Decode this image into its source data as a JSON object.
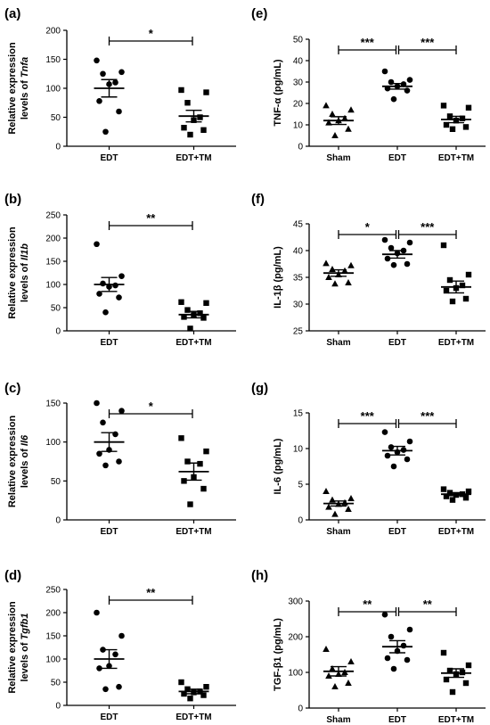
{
  "chart_data": [
    {
      "id": "a",
      "panel_label": "(a)",
      "type": "scatter",
      "ylabel_lines": [
        "Relative expression",
        "levels of "
      ],
      "ylabel_gene": "Tnfa",
      "ylim": [
        0,
        200
      ],
      "yticks": [
        0,
        50,
        100,
        150,
        200
      ],
      "categories": [
        "EDT",
        "EDT+TM"
      ],
      "groups": [
        {
          "mean": 100,
          "sem": 15,
          "marker": "circle",
          "points": [
            148,
            128,
            125,
            110,
            107,
            78,
            60,
            25
          ]
        },
        {
          "mean": 52,
          "sem": 10,
          "marker": "square",
          "points": [
            97,
            93,
            75,
            50,
            45,
            32,
            28,
            20
          ]
        }
      ],
      "comparisons": [
        {
          "from": 0,
          "to": 1,
          "label": "*"
        }
      ]
    },
    {
      "id": "b",
      "panel_label": "(b)",
      "type": "scatter",
      "ylabel_lines": [
        "Relative expression",
        "levels of "
      ],
      "ylabel_gene": "Il1b",
      "ylim": [
        0,
        250
      ],
      "yticks": [
        0,
        50,
        100,
        150,
        200,
        250
      ],
      "categories": [
        "EDT",
        "EDT+TM"
      ],
      "groups": [
        {
          "mean": 100,
          "sem": 15,
          "marker": "circle",
          "points": [
            187,
            118,
            102,
            98,
            95,
            80,
            72,
            40
          ]
        },
        {
          "mean": 35,
          "sem": 7,
          "marker": "square",
          "points": [
            62,
            60,
            45,
            38,
            35,
            30,
            28,
            5
          ]
        }
      ],
      "comparisons": [
        {
          "from": 0,
          "to": 1,
          "label": "**"
        }
      ]
    },
    {
      "id": "c",
      "panel_label": "(c)",
      "type": "scatter",
      "ylabel_lines": [
        "Relative expression",
        "levels of "
      ],
      "ylabel_gene": "Il6",
      "ylim": [
        0,
        150
      ],
      "yticks": [
        0,
        50,
        100,
        150
      ],
      "categories": [
        "EDT",
        "EDT+TM"
      ],
      "groups": [
        {
          "mean": 100,
          "sem": 12,
          "marker": "circle",
          "points": [
            150,
            140,
            125,
            110,
            90,
            85,
            75,
            70
          ]
        },
        {
          "mean": 62,
          "sem": 11,
          "marker": "square",
          "points": [
            105,
            88,
            75,
            72,
            55,
            50,
            40,
            20
          ]
        }
      ],
      "comparisons": [
        {
          "from": 0,
          "to": 1,
          "label": "*"
        }
      ]
    },
    {
      "id": "d",
      "panel_label": "(d)",
      "type": "scatter",
      "ylabel_lines": [
        "Relative expression",
        "levels of "
      ],
      "ylabel_gene": "Tgfb1",
      "ylim": [
        0,
        250
      ],
      "yticks": [
        0,
        50,
        100,
        150,
        200,
        250
      ],
      "categories": [
        "EDT",
        "EDT+TM"
      ],
      "groups": [
        {
          "mean": 100,
          "sem": 20,
          "marker": "circle",
          "points": [
            200,
            150,
            120,
            110,
            85,
            80,
            40,
            35
          ]
        },
        {
          "mean": 30,
          "sem": 5,
          "marker": "square",
          "points": [
            50,
            40,
            35,
            30,
            28,
            25,
            22,
            15
          ]
        }
      ],
      "comparisons": [
        {
          "from": 0,
          "to": 1,
          "label": "**"
        }
      ]
    },
    {
      "id": "e",
      "panel_label": "(e)",
      "type": "scatter",
      "ylabel_lines": [
        "TNF-α (pg/mL)"
      ],
      "ylabel_gene": "",
      "ylim": [
        0,
        50
      ],
      "yticks": [
        0,
        10,
        20,
        30,
        40,
        50
      ],
      "categories": [
        "Sham",
        "EDT",
        "EDT+TM"
      ],
      "groups": [
        {
          "mean": 12,
          "sem": 1.8,
          "marker": "triangle",
          "points": [
            19,
            17,
            15,
            13,
            12,
            11,
            8,
            5
          ]
        },
        {
          "mean": 28,
          "sem": 1.3,
          "marker": "circle",
          "points": [
            35,
            31,
            30,
            29,
            28,
            27,
            26,
            22
          ]
        },
        {
          "mean": 12.5,
          "sem": 1.5,
          "marker": "square",
          "points": [
            19,
            18,
            14,
            13,
            12,
            10,
            9,
            8
          ]
        }
      ],
      "comparisons": [
        {
          "from": 0,
          "to": 1,
          "label": "***"
        },
        {
          "from": 1,
          "to": 2,
          "label": "***"
        }
      ]
    },
    {
      "id": "f",
      "panel_label": "(f)",
      "type": "scatter",
      "ylabel_lines": [
        "IL-1β (pg/mL)"
      ],
      "ylabel_gene": "",
      "ylim": [
        25,
        45
      ],
      "yticks": [
        25,
        30,
        35,
        40,
        45
      ],
      "categories": [
        "Sham",
        "EDT",
        "EDT+TM"
      ],
      "groups": [
        {
          "mean": 35.8,
          "sem": 0.6,
          "marker": "triangle",
          "points": [
            37.6,
            37.2,
            36.5,
            36.2,
            35.5,
            35,
            34,
            33.8
          ]
        },
        {
          "mean": 39.3,
          "sem": 0.7,
          "marker": "circle",
          "points": [
            42,
            41.5,
            40.5,
            40,
            39.5,
            38.5,
            37.5,
            37.3
          ]
        },
        {
          "mean": 33.2,
          "sem": 1.1,
          "marker": "square",
          "points": [
            41,
            35.5,
            34.5,
            33.5,
            33,
            32.5,
            31,
            30.5
          ]
        }
      ],
      "comparisons": [
        {
          "from": 0,
          "to": 1,
          "label": "*"
        },
        {
          "from": 1,
          "to": 2,
          "label": "***"
        }
      ]
    },
    {
      "id": "g",
      "panel_label": "(g)",
      "type": "scatter",
      "ylabel_lines": [
        "IL-6 (pg/mL)"
      ],
      "ylabel_gene": "",
      "ylim": [
        0,
        15
      ],
      "yticks": [
        0,
        5,
        10,
        15
      ],
      "categories": [
        "Sham",
        "EDT",
        "EDT+TM"
      ],
      "groups": [
        {
          "mean": 2.3,
          "sem": 0.35,
          "marker": "triangle",
          "points": [
            4,
            3,
            2.8,
            2.4,
            2.2,
            1.8,
            1.5,
            0.8
          ]
        },
        {
          "mean": 9.7,
          "sem": 0.6,
          "marker": "circle",
          "points": [
            12.3,
            11,
            10.2,
            9.8,
            9.5,
            9,
            8.5,
            7.5
          ]
        },
        {
          "mean": 3.6,
          "sem": 0.2,
          "marker": "square",
          "points": [
            4.3,
            4.0,
            3.8,
            3.6,
            3.5,
            3.3,
            3.1,
            2.8
          ]
        }
      ],
      "comparisons": [
        {
          "from": 0,
          "to": 1,
          "label": "***"
        },
        {
          "from": 1,
          "to": 2,
          "label": "***"
        }
      ]
    },
    {
      "id": "h",
      "panel_label": "(h)",
      "type": "scatter",
      "ylabel_lines": [
        "TGF-β1 (pg/mL)"
      ],
      "ylabel_gene": "",
      "ylim": [
        0,
        300
      ],
      "yticks": [
        0,
        100,
        200,
        300
      ],
      "categories": [
        "Sham",
        "EDT",
        "EDT+TM"
      ],
      "groups": [
        {
          "mean": 103,
          "sem": 13,
          "marker": "triangle",
          "points": [
            165,
            130,
            110,
            100,
            95,
            90,
            70,
            60
          ]
        },
        {
          "mean": 172,
          "sem": 17,
          "marker": "circle",
          "points": [
            262,
            220,
            200,
            175,
            160,
            140,
            135,
            110
          ]
        },
        {
          "mean": 98,
          "sem": 12,
          "marker": "square",
          "points": [
            155,
            120,
            105,
            100,
            95,
            80,
            70,
            45
          ]
        }
      ],
      "comparisons": [
        {
          "from": 0,
          "to": 1,
          "label": "**"
        },
        {
          "from": 1,
          "to": 2,
          "label": "**"
        }
      ]
    }
  ]
}
